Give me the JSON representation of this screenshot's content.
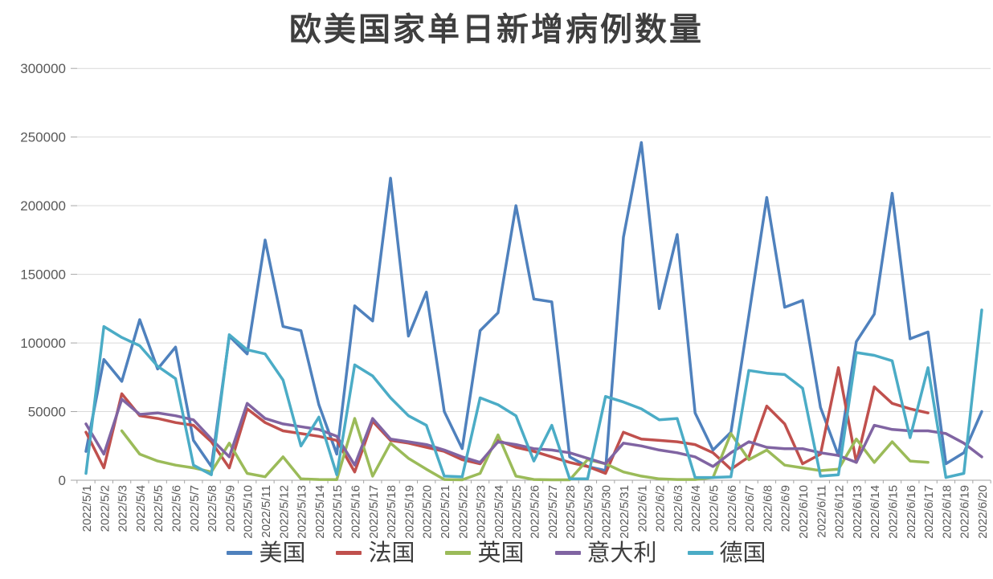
{
  "page": {
    "title": "欧美国家单日新增病例数量"
  },
  "chart_data": {
    "type": "line",
    "title": "欧美国家单日新增病例数量",
    "xlabel": "",
    "ylabel": "",
    "ylim": [
      0,
      300000
    ],
    "y_ticks": [
      0,
      50000,
      100000,
      150000,
      200000,
      250000,
      300000
    ],
    "grid": true,
    "legend_position": "bottom",
    "x": [
      "2022/5/1",
      "2022/5/2",
      "2022/5/3",
      "2022/5/4",
      "2022/5/5",
      "2022/5/6",
      "2022/5/7",
      "2022/5/8",
      "2022/5/9",
      "2022/5/10",
      "2022/5/11",
      "2022/5/12",
      "2022/5/13",
      "2022/5/14",
      "2022/5/15",
      "2022/5/16",
      "2022/5/17",
      "2022/5/18",
      "2022/5/19",
      "2022/5/20",
      "2022/5/21",
      "2022/5/22",
      "2022/5/23",
      "2022/5/24",
      "2022/5/25",
      "2022/5/26",
      "2022/5/27",
      "2022/5/28",
      "2022/5/29",
      "2022/5/30",
      "2022/5/31",
      "2022/6/1",
      "2022/6/2",
      "2022/6/3",
      "2022/6/4",
      "2022/6/5",
      "2022/6/6",
      "2022/6/7",
      "2022/6/8",
      "2022/6/9",
      "2022/6/10",
      "2022/6/11",
      "2022/6/12",
      "2022/6/13",
      "2022/6/14",
      "2022/6/15",
      "2022/6/16",
      "2022/6/17",
      "2022/6/18",
      "2022/6/19",
      "2022/6/20"
    ],
    "series": [
      {
        "key": "us",
        "name": "美国",
        "color": "#4F81BD",
        "values": [
          21000,
          88000,
          72000,
          117000,
          81000,
          97000,
          29000,
          10000,
          105000,
          92000,
          175000,
          112000,
          109000,
          55000,
          19000,
          127000,
          116000,
          220000,
          105000,
          137000,
          50000,
          23000,
          109000,
          122000,
          200000,
          132000,
          130000,
          17000,
          10000,
          7000,
          177000,
          246000,
          125000,
          179000,
          49000,
          22000,
          35000,
          120000,
          206000,
          126000,
          131000,
          53000,
          18000,
          101000,
          121000,
          209000,
          103000,
          108000,
          12000,
          20000,
          50000
        ]
      },
      {
        "key": "france",
        "name": "法国",
        "color": "#C0504D",
        "values": [
          35000,
          9000,
          63000,
          47000,
          45000,
          42000,
          40000,
          28000,
          9000,
          52000,
          42000,
          36000,
          34000,
          32000,
          29000,
          6000,
          43000,
          29000,
          27000,
          24000,
          21000,
          15000,
          12000,
          29000,
          24000,
          21000,
          17000,
          13000,
          10000,
          5000,
          35000,
          30000,
          29000,
          28000,
          26000,
          20000,
          8000,
          17000,
          54000,
          41000,
          12000,
          19000,
          82000,
          13000,
          68000,
          56000,
          52000,
          49000,
          null,
          null,
          null
        ]
      },
      {
        "key": "uk",
        "name": "英国",
        "color": "#9BBB59",
        "values": [
          null,
          null,
          36000,
          19000,
          14000,
          11000,
          9000,
          6000,
          27000,
          5000,
          2500,
          17000,
          1000,
          500,
          400,
          45000,
          3000,
          27000,
          16000,
          8000,
          500,
          300,
          5000,
          33000,
          3000,
          500,
          300,
          300,
          15000,
          12000,
          6000,
          3000,
          1000,
          500,
          500,
          2000,
          34000,
          15000,
          22000,
          11000,
          9000,
          7000,
          8000,
          30000,
          13000,
          28000,
          14000,
          13000,
          null,
          null,
          null
        ]
      },
      {
        "key": "italy",
        "name": "意大利",
        "color": "#8064A2",
        "values": [
          41000,
          19000,
          59000,
          48000,
          49000,
          47000,
          44000,
          30000,
          17000,
          56000,
          45000,
          41000,
          39000,
          37000,
          32000,
          11000,
          45000,
          30000,
          28000,
          26000,
          22000,
          17000,
          13000,
          28000,
          26000,
          23000,
          22000,
          20000,
          16000,
          12000,
          27000,
          25000,
          22000,
          20000,
          17000,
          10000,
          20000,
          28000,
          24000,
          23000,
          23000,
          20000,
          18000,
          13000,
          40000,
          37000,
          36000,
          36000,
          34000,
          27000,
          17000
        ]
      },
      {
        "key": "germany",
        "name": "德国",
        "color": "#4BACC6",
        "values": [
          5000,
          112000,
          104000,
          98000,
          83000,
          74000,
          11000,
          4000,
          106000,
          95000,
          92000,
          73000,
          25000,
          46000,
          4000,
          84000,
          76000,
          60000,
          47000,
          40000,
          3000,
          2500,
          60000,
          55000,
          47000,
          14000,
          40000,
          1000,
          1000,
          61000,
          57000,
          52000,
          44000,
          45000,
          2000,
          2000,
          2500,
          80000,
          78000,
          77000,
          67000,
          3000,
          4000,
          93000,
          91000,
          87000,
          31000,
          82000,
          2000,
          5000,
          124000
        ]
      }
    ],
    "style": {
      "grid_color": "#D9D9D9",
      "axis_color": "#A6A6A6",
      "tick_label_color": "#595959",
      "line_width": 3.5
    }
  }
}
